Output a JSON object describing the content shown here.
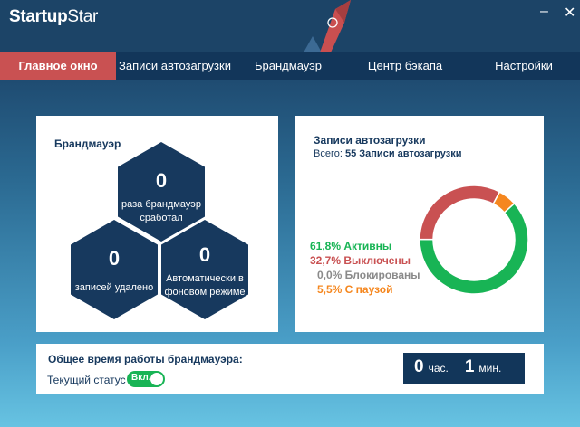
{
  "app": {
    "title_bold": "Startup",
    "title_light": "Star",
    "minimize_icon": "minimize-icon",
    "close_icon": "close-icon"
  },
  "nav": {
    "items": [
      {
        "label": "Главное окно",
        "active": true
      },
      {
        "label": "Записи автозагрузки"
      },
      {
        "label": "Брандмауэр"
      },
      {
        "label": "Центр бэкапа"
      },
      {
        "label": "Настройки"
      }
    ]
  },
  "firewall": {
    "title": "Брандмауэр",
    "hexes": [
      {
        "value": "0",
        "label": "раза брандмауэр сработал"
      },
      {
        "value": "0",
        "label": "записей удалено"
      },
      {
        "value": "0",
        "label": "Автоматически в фоновом режиме"
      }
    ]
  },
  "startup": {
    "title": "Записи автозагрузки",
    "total_label": "Всего:",
    "total_value": "55",
    "total_suffix": "Записи автозагрузки",
    "legend": [
      {
        "text": "61,8% Активны",
        "percent": 61.8,
        "color": "#18b455"
      },
      {
        "text": "32,7% Выключены",
        "percent": 32.7,
        "color": "#c95152"
      },
      {
        "text": "0,0% Блокированы",
        "percent": 0.0,
        "color": "#8a8a8a"
      },
      {
        "text": "5,5% С паузой",
        "percent": 5.5,
        "color": "#f5871f"
      }
    ]
  },
  "uptime": {
    "title": "Общее время работы брандмауэра:",
    "status_label": "Текущий статус",
    "toggle_label": "Вкл.",
    "toggle_on": true,
    "hours": "0",
    "hours_unit": "час.",
    "minutes": "1",
    "minutes_unit": "мин."
  }
}
